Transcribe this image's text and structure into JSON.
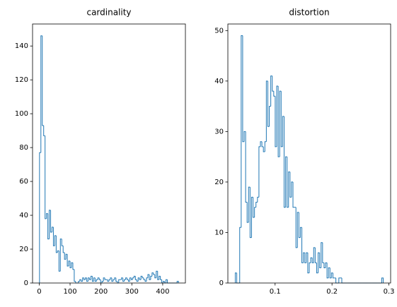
{
  "chart_data": [
    {
      "type": "histogram",
      "title": "cardinality",
      "color": "#1f77b4",
      "bins": [
        1,
        5.5,
        10,
        14.5,
        19,
        23.5,
        28,
        32.5,
        37,
        41.5,
        46,
        50.5,
        55,
        59.5,
        64,
        68.5,
        73,
        77.5,
        82,
        86.5,
        91,
        95.5,
        100,
        104.5,
        109,
        113.5,
        118,
        122.5,
        127,
        131.5,
        136,
        140.5,
        145,
        149.5,
        154,
        158.5,
        163,
        167.5,
        172,
        176.5,
        181,
        185.5,
        190,
        194.5,
        199,
        203.5,
        208,
        212.5,
        217,
        221.5,
        226,
        230.5,
        235,
        239.5,
        244,
        248.5,
        253,
        257.5,
        262,
        266.5,
        271,
        275.5,
        280,
        284.5,
        289,
        293.5,
        298,
        302.5,
        307,
        311.5,
        316,
        320.5,
        325,
        329.5,
        334,
        338.5,
        343,
        347.5,
        352,
        356.5,
        361,
        365.5,
        370,
        374.5,
        379,
        383.5,
        388,
        392.5,
        397,
        401.5,
        406,
        410.5,
        415,
        419.5,
        424,
        428.5,
        433,
        437.5,
        442,
        446.5,
        451
      ],
      "counts": [
        77,
        146,
        93,
        87,
        38,
        41,
        26,
        43,
        30,
        33,
        22,
        28,
        18,
        19,
        7,
        26,
        22,
        18,
        14,
        17,
        10,
        13,
        9,
        12,
        8,
        1,
        0,
        0,
        1,
        2,
        1,
        3,
        2,
        3,
        1,
        3,
        2,
        4,
        1,
        3,
        1,
        2,
        3,
        2,
        0,
        1,
        3,
        2,
        2,
        1,
        2,
        3,
        1,
        2,
        3,
        1,
        0,
        2,
        2,
        3,
        1,
        2,
        3,
        2,
        1,
        3,
        2,
        3,
        4,
        2,
        1,
        3,
        2,
        4,
        3,
        2,
        1,
        3,
        5,
        2,
        4,
        6,
        5,
        3,
        7,
        2,
        4,
        2,
        0,
        1,
        0,
        2,
        0,
        0,
        0,
        0,
        0,
        0,
        0,
        1
      ],
      "xlim": [
        -21.5,
        473.5
      ],
      "ylim": [
        0,
        153
      ],
      "xticks": [
        0,
        100,
        200,
        300,
        400
      ],
      "yticks": [
        0,
        20,
        40,
        60,
        80,
        100,
        120,
        140
      ]
    },
    {
      "type": "histogram",
      "title": "distortion",
      "color": "#1f77b4",
      "bins": [
        0.03,
        0.0326,
        0.0352,
        0.0378,
        0.0404,
        0.043,
        0.0456,
        0.0482,
        0.0508,
        0.0534,
        0.056,
        0.0586,
        0.0612,
        0.0638,
        0.0664,
        0.069,
        0.0716,
        0.0742,
        0.0768,
        0.0794,
        0.082,
        0.0846,
        0.0872,
        0.0898,
        0.0924,
        0.095,
        0.0976,
        0.1002,
        0.1028,
        0.1054,
        0.108,
        0.1106,
        0.1132,
        0.1158,
        0.1184,
        0.121,
        0.1236,
        0.1262,
        0.1288,
        0.1314,
        0.134,
        0.1366,
        0.1392,
        0.1418,
        0.1444,
        0.147,
        0.1496,
        0.1522,
        0.1548,
        0.1574,
        0.16,
        0.1626,
        0.1652,
        0.1678,
        0.1704,
        0.173,
        0.1756,
        0.1782,
        0.1808,
        0.1834,
        0.186,
        0.1886,
        0.1912,
        0.1938,
        0.1964,
        0.199,
        0.2016,
        0.2042,
        0.2068,
        0.2094,
        0.212,
        0.2146,
        0.2172,
        0.2198,
        0.2224,
        0.225,
        0.2276,
        0.2302,
        0.2328,
        0.2354,
        0.238,
        0.2406,
        0.2432,
        0.2458,
        0.2484,
        0.251,
        0.2536,
        0.2562,
        0.2588,
        0.2614,
        0.264,
        0.2666,
        0.2692,
        0.2718,
        0.2744,
        0.277,
        0.2796,
        0.2822,
        0.2848,
        0.2874,
        0.29
      ],
      "counts": [
        2,
        0,
        0,
        11,
        49,
        28,
        30,
        16,
        12,
        19,
        9,
        17,
        13,
        15,
        16,
        17,
        27,
        28,
        27,
        26,
        28,
        40,
        31,
        35,
        41,
        38,
        37,
        27,
        39,
        25,
        38,
        27,
        33,
        15,
        25,
        15,
        22,
        17,
        20,
        15,
        15,
        7,
        14,
        9,
        11,
        4,
        6,
        4,
        6,
        2,
        4,
        5,
        4,
        7,
        4,
        2,
        6,
        3,
        8,
        4,
        3,
        4,
        1,
        3,
        1,
        2,
        1,
        1,
        0,
        0,
        1,
        1,
        0,
        0,
        0,
        0,
        0,
        0,
        0,
        0,
        0,
        0,
        0,
        0,
        0,
        0,
        0,
        0,
        0,
        0,
        0,
        0,
        0,
        0,
        0,
        0,
        0,
        0,
        0,
        1
      ],
      "xlim": [
        0.017,
        0.303
      ],
      "ylim": [
        0,
        51.3
      ],
      "xticks": [
        0.1,
        0.2,
        0.3
      ],
      "yticks": [
        0,
        10,
        20,
        30,
        40,
        50
      ]
    }
  ]
}
